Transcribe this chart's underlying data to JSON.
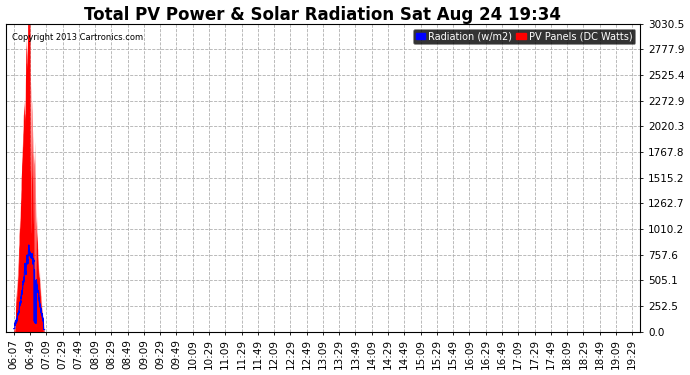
{
  "title": "Total PV Power & Solar Radiation Sat Aug 24 19:34",
  "copyright": "Copyright 2013 Cartronics.com",
  "legend_labels": [
    "Radiation (w/m2)",
    "PV Panels (DC Watts)"
  ],
  "yticks": [
    0.0,
    252.5,
    505.1,
    757.6,
    1010.2,
    1262.7,
    1515.2,
    1767.8,
    2020.3,
    2272.9,
    2525.4,
    2777.9,
    3030.5
  ],
  "ymax": 3030.5,
  "ymin": 0.0,
  "background_color": "#ffffff",
  "plot_bg_color": "#ffffff",
  "grid_color": "#b0b0b0",
  "pv_color": "red",
  "radiation_color": "blue",
  "title_fontsize": 12,
  "tick_fontsize": 7.5,
  "xtick_labels": [
    "06:07",
    "06:49",
    "07:09",
    "07:29",
    "07:49",
    "08:09",
    "08:29",
    "08:49",
    "09:09",
    "09:29",
    "09:49",
    "10:09",
    "10:29",
    "11:09",
    "11:29",
    "11:49",
    "12:09",
    "12:29",
    "12:49",
    "13:09",
    "13:29",
    "13:49",
    "14:09",
    "14:29",
    "14:49",
    "15:09",
    "15:29",
    "15:49",
    "16:09",
    "16:29",
    "16:49",
    "17:09",
    "17:29",
    "17:49",
    "18:09",
    "18:29",
    "18:49",
    "19:09",
    "19:29"
  ]
}
